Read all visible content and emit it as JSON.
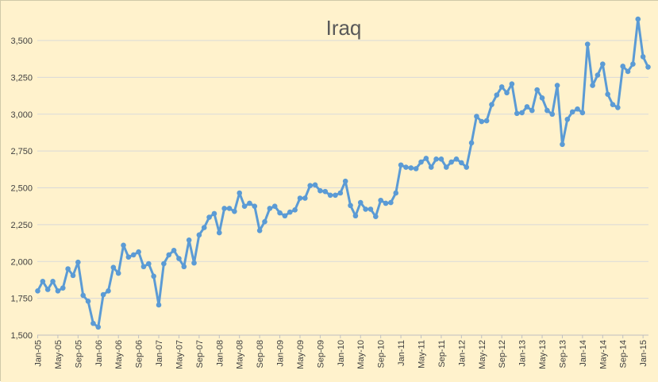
{
  "chart_data": {
    "type": "line",
    "title": "Iraq",
    "xlabel": "",
    "ylabel": "",
    "ylim": [
      1500,
      3750
    ],
    "y_ticks": [
      "1,500",
      "1,750",
      "2,000",
      "2,250",
      "2,500",
      "2,750",
      "3,000",
      "3,250",
      "3,500"
    ],
    "y_tick_values": [
      1500,
      1750,
      2000,
      2250,
      2500,
      2750,
      3000,
      3250,
      3500
    ],
    "x_ticks": [
      "Jan-05",
      "May-05",
      "Sep-05",
      "Jan-06",
      "May-06",
      "Sep-06",
      "Jan-07",
      "May-07",
      "Sep-07",
      "Jan-08",
      "May-08",
      "Sep-08",
      "Jan-09",
      "May-09",
      "Sep-09",
      "Jan-10",
      "May-10",
      "Sep-10",
      "Jan-11",
      "May-11",
      "Sep-11",
      "Jan-12",
      "May-12",
      "Sep-12",
      "Jan-13",
      "May-13",
      "Sep-13",
      "Jan-14",
      "May-14",
      "Sep-14",
      "Jan-15"
    ],
    "x_tick_every": 4,
    "grid": "horizontal",
    "legend": "none",
    "colors": {
      "background": "#FFF2CC",
      "line": "#5B9BD5",
      "grid": "#d9d9d9",
      "axis": "#bfbfbf"
    },
    "x_start": "Jan-05",
    "x_end": "Feb-15",
    "series": [
      {
        "values": [
          1800,
          1865,
          1810,
          1865,
          1800,
          1820,
          1950,
          1905,
          1995,
          1770,
          1730,
          1580,
          1555,
          1775,
          1800,
          1960,
          1920,
          2110,
          2030,
          2045,
          2065,
          1965,
          1985,
          1900,
          1705,
          1985,
          2045,
          2075,
          2020,
          1965,
          2145,
          1990,
          2180,
          2230,
          2300,
          2325,
          2195,
          2360,
          2360,
          2340,
          2465,
          2375,
          2395,
          2375,
          2210,
          2270,
          2360,
          2375,
          2330,
          2310,
          2335,
          2350,
          2430,
          2430,
          2515,
          2520,
          2480,
          2475,
          2450,
          2450,
          2465,
          2545,
          2380,
          2310,
          2400,
          2355,
          2355,
          2305,
          2415,
          2395,
          2400,
          2465,
          2655,
          2640,
          2635,
          2630,
          2675,
          2700,
          2640,
          2695,
          2695,
          2640,
          2675,
          2695,
          2670,
          2640,
          2805,
          2985,
          2950,
          2955,
          3065,
          3130,
          3185,
          3145,
          3205,
          3005,
          3010,
          3050,
          3025,
          3165,
          3110,
          3025,
          3000,
          3195,
          2795,
          2965,
          3015,
          3035,
          3010,
          3475,
          3195,
          3265,
          3340,
          3135,
          3065,
          3045,
          3325,
          3290,
          3340,
          3645,
          3390,
          3320
        ]
      }
    ]
  }
}
